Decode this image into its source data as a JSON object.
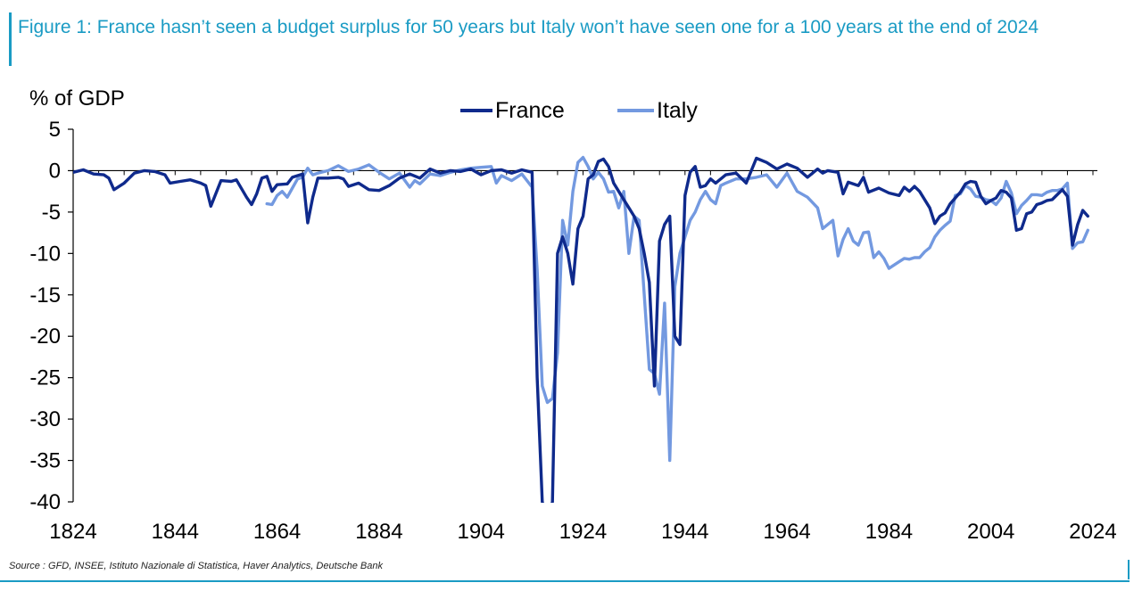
{
  "title": "Figure 1: France hasn’t seen a budget surplus for 50 years but Italy won’t have seen one for a 100 years at the end of 2024",
  "source": "Source : GFD, INSEE, Istituto Nazionale di Statistica, Haver Analytics, Deutsche Bank",
  "colors": {
    "title": "#1a9bc4",
    "france": "#0f2a8c",
    "italy": "#7399e0",
    "axis": "#000000"
  },
  "chart_data": {
    "type": "line",
    "ylabel": "% of GDP",
    "xlim": [
      1824,
      2024
    ],
    "ylim": [
      -40,
      5
    ],
    "x_ticks": [
      1824,
      1844,
      1864,
      1884,
      1904,
      1924,
      1944,
      1964,
      1984,
      2004,
      2024
    ],
    "y_ticks": [
      5,
      0,
      -5,
      -10,
      -15,
      -20,
      -25,
      -30,
      -35,
      -40
    ],
    "grid": false,
    "legend_position": "top-center",
    "series": [
      {
        "name": "France",
        "points": [
          [
            1824,
            -0.2
          ],
          [
            1826,
            0.1
          ],
          [
            1828,
            -0.4
          ],
          [
            1830,
            -0.5
          ],
          [
            1831,
            -0.9
          ],
          [
            1832,
            -2.3
          ],
          [
            1834,
            -1.5
          ],
          [
            1836,
            -0.3
          ],
          [
            1838,
            0
          ],
          [
            1840,
            -0.1
          ],
          [
            1842,
            -0.5
          ],
          [
            1843,
            -1.5
          ],
          [
            1845,
            -1.3
          ],
          [
            1847,
            -1.1
          ],
          [
            1849,
            -1.5
          ],
          [
            1850,
            -1.8
          ],
          [
            1851,
            -4.3
          ],
          [
            1853,
            -1.2
          ],
          [
            1855,
            -1.3
          ],
          [
            1856,
            -1.1
          ],
          [
            1858,
            -3.2
          ],
          [
            1859,
            -4.1
          ],
          [
            1860,
            -2.8
          ],
          [
            1861,
            -0.9
          ],
          [
            1862,
            -0.7
          ],
          [
            1863,
            -2.5
          ],
          [
            1864,
            -1.7
          ],
          [
            1866,
            -1.6
          ],
          [
            1867,
            -0.8
          ],
          [
            1869,
            -0.4
          ],
          [
            1870,
            -6.3
          ],
          [
            1871,
            -3.2
          ],
          [
            1872,
            -0.9
          ],
          [
            1874,
            -0.9
          ],
          [
            1876,
            -0.8
          ],
          [
            1877,
            -1.0
          ],
          [
            1878,
            -1.9
          ],
          [
            1880,
            -1.5
          ],
          [
            1882,
            -2.3
          ],
          [
            1884,
            -2.4
          ],
          [
            1886,
            -1.8
          ],
          [
            1888,
            -0.9
          ],
          [
            1890,
            -0.4
          ],
          [
            1892,
            -0.9
          ],
          [
            1894,
            0.2
          ],
          [
            1896,
            -0.3
          ],
          [
            1898,
            0
          ],
          [
            1900,
            -0.1
          ],
          [
            1902,
            0.2
          ],
          [
            1904,
            -0.5
          ],
          [
            1906,
            0
          ],
          [
            1908,
            0.1
          ],
          [
            1910,
            -0.3
          ],
          [
            1912,
            0.1
          ],
          [
            1914,
            -0.2
          ],
          [
            1915,
            -25
          ],
          [
            1916,
            -40
          ],
          [
            1917,
            -42
          ],
          [
            1918,
            -40
          ],
          [
            1919,
            -10
          ],
          [
            1920,
            -8
          ],
          [
            1921,
            -10
          ],
          [
            1922,
            -13.7
          ],
          [
            1923,
            -7
          ],
          [
            1924,
            -5.5
          ],
          [
            1925,
            -1
          ],
          [
            1926,
            -0.5
          ],
          [
            1927,
            1.1
          ],
          [
            1928,
            1.4
          ],
          [
            1929,
            0.5
          ],
          [
            1930,
            -1.5
          ],
          [
            1931,
            -2.5
          ],
          [
            1932,
            -3.5
          ],
          [
            1933,
            -4.5
          ],
          [
            1934,
            -5.5
          ],
          [
            1935,
            -7
          ],
          [
            1936,
            -10
          ],
          [
            1937,
            -13.5
          ],
          [
            1938,
            -26
          ],
          [
            1939,
            -8.5
          ],
          [
            1940,
            -6.5
          ],
          [
            1941,
            -5.5
          ],
          [
            1942,
            -20
          ],
          [
            1943,
            -21
          ],
          [
            1944,
            -3
          ],
          [
            1945,
            -0.2
          ],
          [
            1946,
            0.5
          ],
          [
            1947,
            -2
          ],
          [
            1948,
            -1.8
          ],
          [
            1949,
            -1
          ],
          [
            1950,
            -1.5
          ],
          [
            1952,
            -0.5
          ],
          [
            1954,
            -0.3
          ],
          [
            1956,
            -1.5
          ],
          [
            1958,
            1.5
          ],
          [
            1960,
            1
          ],
          [
            1962,
            0.2
          ],
          [
            1964,
            0.8
          ],
          [
            1966,
            0.3
          ],
          [
            1968,
            -0.8
          ],
          [
            1970,
            0.2
          ],
          [
            1971,
            -0.3
          ],
          [
            1972,
            0
          ],
          [
            1974,
            -0.2
          ],
          [
            1975,
            -2.8
          ],
          [
            1976,
            -1.4
          ],
          [
            1978,
            -1.8
          ],
          [
            1979,
            -0.8
          ],
          [
            1980,
            -2.6
          ],
          [
            1982,
            -2.1
          ],
          [
            1984,
            -2.7
          ],
          [
            1986,
            -3
          ],
          [
            1987,
            -2
          ],
          [
            1988,
            -2.5
          ],
          [
            1989,
            -1.9
          ],
          [
            1990,
            -2.5
          ],
          [
            1992,
            -4.5
          ],
          [
            1993,
            -6.4
          ],
          [
            1994,
            -5.5
          ],
          [
            1995,
            -5.1
          ],
          [
            1996,
            -4
          ],
          [
            1997,
            -3.3
          ],
          [
            1998,
            -2.6
          ],
          [
            1999,
            -1.6
          ],
          [
            2000,
            -1.3
          ],
          [
            2001,
            -1.4
          ],
          [
            2002,
            -3.1
          ],
          [
            2003,
            -4
          ],
          [
            2004,
            -3.6
          ],
          [
            2005,
            -3.3
          ],
          [
            2006,
            -2.4
          ],
          [
            2007,
            -2.6
          ],
          [
            2008,
            -3.3
          ],
          [
            2009,
            -7.2
          ],
          [
            2010,
            -7
          ],
          [
            2011,
            -5.2
          ],
          [
            2012,
            -5
          ],
          [
            2013,
            -4.1
          ],
          [
            2014,
            -3.9
          ],
          [
            2015,
            -3.6
          ],
          [
            2016,
            -3.5
          ],
          [
            2017,
            -2.9
          ],
          [
            2018,
            -2.3
          ],
          [
            2019,
            -3.1
          ],
          [
            2020,
            -9
          ],
          [
            2021,
            -6.5
          ],
          [
            2022,
            -4.8
          ],
          [
            2023,
            -5.5
          ]
        ]
      },
      {
        "name": "Italy",
        "points": [
          [
            1862,
            -4
          ],
          [
            1863,
            -4.1
          ],
          [
            1864,
            -3
          ],
          [
            1865,
            -2.5
          ],
          [
            1866,
            -3.2
          ],
          [
            1867,
            -2.1
          ],
          [
            1868,
            -1
          ],
          [
            1869,
            -0.8
          ],
          [
            1870,
            0.3
          ],
          [
            1871,
            -0.5
          ],
          [
            1872,
            -0.3
          ],
          [
            1874,
            0
          ],
          [
            1876,
            0.6
          ],
          [
            1878,
            -0.1
          ],
          [
            1880,
            0.2
          ],
          [
            1882,
            0.7
          ],
          [
            1884,
            -0.2
          ],
          [
            1886,
            -1
          ],
          [
            1888,
            -0.3
          ],
          [
            1890,
            -2
          ],
          [
            1891,
            -1.2
          ],
          [
            1892,
            -1.6
          ],
          [
            1894,
            -0.4
          ],
          [
            1896,
            -0.6
          ],
          [
            1898,
            -0.2
          ],
          [
            1900,
            0.1
          ],
          [
            1902,
            0.3
          ],
          [
            1904,
            0.4
          ],
          [
            1906,
            0.5
          ],
          [
            1907,
            -1.5
          ],
          [
            1908,
            -0.6
          ],
          [
            1910,
            -1.2
          ],
          [
            1912,
            -0.4
          ],
          [
            1914,
            -2
          ],
          [
            1915,
            -12
          ],
          [
            1916,
            -26
          ],
          [
            1917,
            -28
          ],
          [
            1918,
            -27.5
          ],
          [
            1919,
            -22
          ],
          [
            1920,
            -6
          ],
          [
            1921,
            -9
          ],
          [
            1922,
            -2.5
          ],
          [
            1923,
            1
          ],
          [
            1924,
            1.6
          ],
          [
            1925,
            0.5
          ],
          [
            1926,
            -1
          ],
          [
            1927,
            -0.2
          ],
          [
            1928,
            -1
          ],
          [
            1929,
            -2.6
          ],
          [
            1930,
            -2.5
          ],
          [
            1931,
            -4.5
          ],
          [
            1932,
            -2.5
          ],
          [
            1933,
            -10
          ],
          [
            1934,
            -5.5
          ],
          [
            1935,
            -6
          ],
          [
            1936,
            -15
          ],
          [
            1937,
            -24
          ],
          [
            1938,
            -24.5
          ],
          [
            1939,
            -27
          ],
          [
            1940,
            -16
          ],
          [
            1941,
            -35
          ],
          [
            1942,
            -14
          ],
          [
            1943,
            -10
          ],
          [
            1944,
            -8
          ],
          [
            1945,
            -6
          ],
          [
            1946,
            -5
          ],
          [
            1947,
            -3.5
          ],
          [
            1948,
            -2.5
          ],
          [
            1949,
            -3.5
          ],
          [
            1950,
            -4
          ],
          [
            1951,
            -1.8
          ],
          [
            1952,
            -1.5
          ],
          [
            1954,
            -1
          ],
          [
            1956,
            -1
          ],
          [
            1958,
            -0.8
          ],
          [
            1960,
            -0.5
          ],
          [
            1962,
            -2
          ],
          [
            1964,
            -0.3
          ],
          [
            1966,
            -2.5
          ],
          [
            1968,
            -3.2
          ],
          [
            1970,
            -4.5
          ],
          [
            1971,
            -7
          ],
          [
            1972,
            -6.5
          ],
          [
            1973,
            -6
          ],
          [
            1974,
            -10.3
          ],
          [
            1975,
            -8.3
          ],
          [
            1976,
            -7
          ],
          [
            1977,
            -8.5
          ],
          [
            1978,
            -9
          ],
          [
            1979,
            -7.5
          ],
          [
            1980,
            -7.4
          ],
          [
            1981,
            -10.5
          ],
          [
            1982,
            -9.8
          ],
          [
            1983,
            -10.6
          ],
          [
            1984,
            -11.8
          ],
          [
            1985,
            -11.4
          ],
          [
            1986,
            -11
          ],
          [
            1987,
            -10.6
          ],
          [
            1988,
            -10.7
          ],
          [
            1989,
            -10.5
          ],
          [
            1990,
            -10.5
          ],
          [
            1991,
            -9.8
          ],
          [
            1992,
            -9.3
          ],
          [
            1993,
            -8
          ],
          [
            1994,
            -7.2
          ],
          [
            1995,
            -6.6
          ],
          [
            1996,
            -6.1
          ],
          [
            1997,
            -3
          ],
          [
            1998,
            -2.8
          ],
          [
            1999,
            -1.8
          ],
          [
            2000,
            -2.2
          ],
          [
            2001,
            -3.1
          ],
          [
            2002,
            -3.2
          ],
          [
            2003,
            -3.5
          ],
          [
            2004,
            -3.6
          ],
          [
            2005,
            -4.1
          ],
          [
            2006,
            -3.3
          ],
          [
            2007,
            -1.3
          ],
          [
            2008,
            -2.7
          ],
          [
            2009,
            -5.2
          ],
          [
            2010,
            -4.2
          ],
          [
            2011,
            -3.6
          ],
          [
            2012,
            -2.9
          ],
          [
            2013,
            -2.9
          ],
          [
            2014,
            -3
          ],
          [
            2015,
            -2.6
          ],
          [
            2016,
            -2.4
          ],
          [
            2017,
            -2.4
          ],
          [
            2018,
            -2.2
          ],
          [
            2019,
            -1.5
          ],
          [
            2020,
            -9.4
          ],
          [
            2021,
            -8.7
          ],
          [
            2022,
            -8.6
          ],
          [
            2023,
            -7.2
          ]
        ]
      }
    ]
  }
}
